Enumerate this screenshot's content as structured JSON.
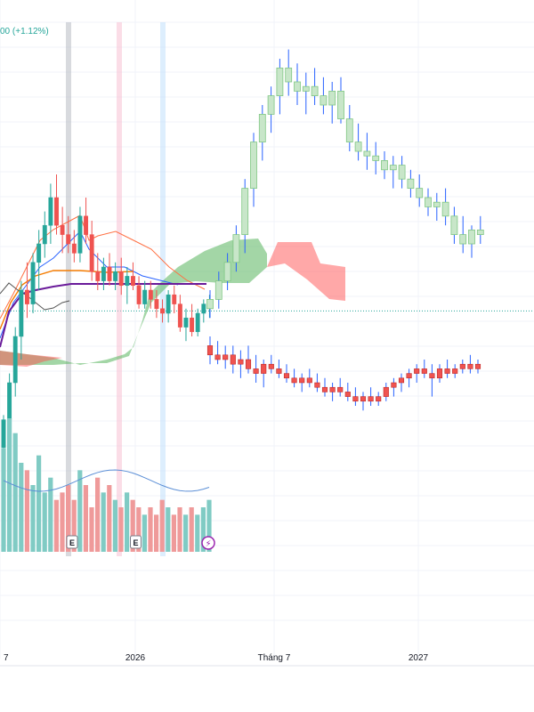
{
  "header": {
    "change_text": "00 (+1.12%)",
    "change_color": "#26a69a"
  },
  "colors": {
    "up": "#26a69a",
    "down": "#ef5350",
    "up_vol": "#80cbc4",
    "down_vol": "#ef9a9a",
    "proj_up": "#c8e6c9",
    "proj_down": "#ef5350",
    "wick": "#2962ff",
    "cloud_green": "#66bb6a",
    "cloud_red": "#ff5252",
    "tenkan": "#2962ff",
    "kijun": "#ff7043",
    "chikou": "#43a047",
    "line_orange": "#f57c00",
    "line_purple": "#6a1b9a",
    "vol_ma": "#5c8fd6",
    "highlight_grey": "#b2b5be",
    "highlight_pink": "#f8bbd0",
    "highlight_blue": "#bbdefb",
    "current_price": "#26a69a"
  },
  "chart_data": {
    "type": "candlestick",
    "title": "",
    "x_ticks": [
      {
        "label": "7",
        "week": 0
      },
      {
        "label": "2026",
        "week": 26
      },
      {
        "label": "Tháng 7",
        "week": 52
      },
      {
        "label": "2027",
        "week": 78
      }
    ],
    "y_range": [
      0,
      100
    ],
    "current_price_level": 45.5,
    "candles": [
      {
        "o": 16,
        "h": 23,
        "l": 10,
        "c": 22
      },
      {
        "o": 22,
        "h": 32,
        "l": 20,
        "c": 30
      },
      {
        "o": 30,
        "h": 42,
        "l": 27,
        "c": 40
      },
      {
        "o": 40,
        "h": 52,
        "l": 35,
        "c": 50
      },
      {
        "o": 50,
        "h": 56,
        "l": 44,
        "c": 47
      },
      {
        "o": 47,
        "h": 58,
        "l": 45,
        "c": 56
      },
      {
        "o": 56,
        "h": 63,
        "l": 50,
        "c": 60
      },
      {
        "o": 60,
        "h": 67,
        "l": 57,
        "c": 64
      },
      {
        "o": 64,
        "h": 73,
        "l": 60,
        "c": 70
      },
      {
        "o": 70,
        "h": 75,
        "l": 62,
        "c": 64
      },
      {
        "o": 64,
        "h": 68,
        "l": 58,
        "c": 62
      },
      {
        "o": 62,
        "h": 66,
        "l": 58,
        "c": 60
      },
      {
        "o": 60,
        "h": 63,
        "l": 56,
        "c": 58
      },
      {
        "o": 58,
        "h": 68,
        "l": 56,
        "c": 66
      },
      {
        "o": 66,
        "h": 70,
        "l": 60,
        "c": 62
      },
      {
        "o": 62,
        "h": 65,
        "l": 52,
        "c": 54
      },
      {
        "o": 54,
        "h": 58,
        "l": 50,
        "c": 52
      },
      {
        "o": 52,
        "h": 57,
        "l": 50,
        "c": 55
      },
      {
        "o": 55,
        "h": 58,
        "l": 51,
        "c": 52
      },
      {
        "o": 52,
        "h": 56,
        "l": 50,
        "c": 54
      },
      {
        "o": 54,
        "h": 57,
        "l": 49,
        "c": 51
      },
      {
        "o": 51,
        "h": 55,
        "l": 47,
        "c": 53
      },
      {
        "o": 53,
        "h": 56,
        "l": 50,
        "c": 51
      },
      {
        "o": 51,
        "h": 53,
        "l": 46,
        "c": 47
      },
      {
        "o": 47,
        "h": 52,
        "l": 46,
        "c": 50
      },
      {
        "o": 50,
        "h": 52,
        "l": 46,
        "c": 48
      },
      {
        "o": 48,
        "h": 50,
        "l": 44,
        "c": 46
      },
      {
        "o": 46,
        "h": 48,
        "l": 43,
        "c": 45
      },
      {
        "o": 45,
        "h": 50,
        "l": 43,
        "c": 49
      },
      {
        "o": 49,
        "h": 51,
        "l": 45,
        "c": 47
      },
      {
        "o": 47,
        "h": 49,
        "l": 41,
        "c": 42
      },
      {
        "o": 42,
        "h": 46,
        "l": 39,
        "c": 44
      },
      {
        "o": 44,
        "h": 47,
        "l": 40,
        "c": 41
      },
      {
        "o": 41,
        "h": 46,
        "l": 40,
        "c": 45
      },
      {
        "o": 45,
        "h": 48,
        "l": 43,
        "c": 47
      },
      {
        "o": 47,
        "h": 49,
        "l": 44,
        "c": 48
      }
    ],
    "projected_candles": [
      {
        "o": 46,
        "h": 48,
        "l": 42,
        "c": 44
      },
      {
        "o": 44,
        "h": 47,
        "l": 42,
        "c": 43
      },
      {
        "o": 43,
        "h": 46,
        "l": 41,
        "c": 44
      },
      {
        "o": 44,
        "h": 46,
        "l": 40,
        "c": 42
      },
      {
        "o": 42,
        "h": 45,
        "l": 39,
        "c": 43
      },
      {
        "o": 43,
        "h": 46,
        "l": 40,
        "c": 41
      },
      {
        "o": 41,
        "h": 44,
        "l": 38,
        "c": 40
      },
      {
        "o": 40,
        "h": 43,
        "l": 37,
        "c": 42
      },
      {
        "o": 42,
        "h": 44,
        "l": 40,
        "c": 41
      },
      {
        "o": 41,
        "h": 43,
        "l": 39,
        "c": 40
      },
      {
        "o": 40,
        "h": 42,
        "l": 38,
        "c": 39
      },
      {
        "o": 39,
        "h": 41,
        "l": 37,
        "c": 38
      },
      {
        "o": 38,
        "h": 40,
        "l": 36,
        "c": 39
      },
      {
        "o": 39,
        "h": 41,
        "l": 37,
        "c": 38
      },
      {
        "o": 38,
        "h": 40,
        "l": 36,
        "c": 37
      },
      {
        "o": 37,
        "h": 39,
        "l": 35,
        "c": 36
      },
      {
        "o": 36,
        "h": 38,
        "l": 34,
        "c": 37
      },
      {
        "o": 37,
        "h": 39,
        "l": 35,
        "c": 36
      },
      {
        "o": 36,
        "h": 38,
        "l": 34,
        "c": 35
      },
      {
        "o": 35,
        "h": 37,
        "l": 33,
        "c": 34
      },
      {
        "o": 34,
        "h": 36,
        "l": 32,
        "c": 35
      },
      {
        "o": 35,
        "h": 37,
        "l": 33,
        "c": 34
      },
      {
        "o": 34,
        "h": 36,
        "l": 33,
        "c": 35
      },
      {
        "o": 35,
        "h": 38,
        "l": 34,
        "c": 37
      },
      {
        "o": 37,
        "h": 39,
        "l": 35,
        "c": 38
      },
      {
        "o": 38,
        "h": 40,
        "l": 36,
        "c": 39
      },
      {
        "o": 39,
        "h": 41,
        "l": 37,
        "c": 40
      },
      {
        "o": 40,
        "h": 42,
        "l": 38,
        "c": 41
      },
      {
        "o": 41,
        "h": 43,
        "l": 39,
        "c": 40
      },
      {
        "o": 40,
        "h": 42,
        "l": 35,
        "c": 39
      },
      {
        "o": 39,
        "h": 42,
        "l": 38,
        "c": 41
      },
      {
        "o": 41,
        "h": 43,
        "l": 39,
        "c": 40
      },
      {
        "o": 40,
        "h": 42,
        "l": 39,
        "c": 41
      },
      {
        "o": 41,
        "h": 43,
        "l": 40,
        "c": 42
      },
      {
        "o": 42,
        "h": 44,
        "l": 40,
        "c": 41
      },
      {
        "o": 41,
        "h": 43,
        "l": 40,
        "c": 42
      }
    ],
    "upper_projection": [
      {
        "o": 46,
        "h": 50,
        "l": 44,
        "c": 48
      },
      {
        "o": 48,
        "h": 54,
        "l": 46,
        "c": 52
      },
      {
        "o": 52,
        "h": 58,
        "l": 50,
        "c": 56
      },
      {
        "o": 56,
        "h": 64,
        "l": 54,
        "c": 62
      },
      {
        "o": 62,
        "h": 74,
        "l": 58,
        "c": 72
      },
      {
        "o": 72,
        "h": 84,
        "l": 68,
        "c": 82
      },
      {
        "o": 82,
        "h": 90,
        "l": 78,
        "c": 88
      },
      {
        "o": 88,
        "h": 94,
        "l": 84,
        "c": 92
      },
      {
        "o": 92,
        "h": 100,
        "l": 88,
        "c": 98
      },
      {
        "o": 98,
        "h": 102,
        "l": 92,
        "c": 95
      },
      {
        "o": 95,
        "h": 99,
        "l": 90,
        "c": 93
      },
      {
        "o": 93,
        "h": 97,
        "l": 88,
        "c": 94
      },
      {
        "o": 94,
        "h": 98,
        "l": 90,
        "c": 92
      },
      {
        "o": 92,
        "h": 96,
        "l": 88,
        "c": 90
      },
      {
        "o": 90,
        "h": 95,
        "l": 86,
        "c": 93
      },
      {
        "o": 93,
        "h": 96,
        "l": 86,
        "c": 87
      },
      {
        "o": 87,
        "h": 90,
        "l": 80,
        "c": 82
      },
      {
        "o": 82,
        "h": 86,
        "l": 78,
        "c": 80
      },
      {
        "o": 80,
        "h": 84,
        "l": 76,
        "c": 79
      },
      {
        "o": 79,
        "h": 82,
        "l": 75,
        "c": 78
      },
      {
        "o": 78,
        "h": 80,
        "l": 74,
        "c": 76
      },
      {
        "o": 76,
        "h": 79,
        "l": 72,
        "c": 77
      },
      {
        "o": 77,
        "h": 79,
        "l": 72,
        "c": 74
      },
      {
        "o": 74,
        "h": 76,
        "l": 70,
        "c": 72
      },
      {
        "o": 72,
        "h": 75,
        "l": 68,
        "c": 70
      },
      {
        "o": 70,
        "h": 72,
        "l": 66,
        "c": 68
      },
      {
        "o": 68,
        "h": 71,
        "l": 65,
        "c": 69
      },
      {
        "o": 69,
        "h": 72,
        "l": 64,
        "c": 66
      },
      {
        "o": 66,
        "h": 68,
        "l": 60,
        "c": 62
      },
      {
        "o": 62,
        "h": 66,
        "l": 58,
        "c": 60
      },
      {
        "o": 60,
        "h": 64,
        "l": 57,
        "c": 63
      },
      {
        "o": 63,
        "h": 66,
        "l": 60,
        "c": 62
      }
    ],
    "volume": [
      14,
      18,
      16,
      12,
      11,
      9,
      13,
      8,
      10,
      7,
      8,
      9,
      7,
      11,
      9,
      6,
      10,
      8,
      9,
      7,
      6,
      8,
      7,
      6,
      5,
      6,
      5,
      7,
      6,
      5,
      6,
      5,
      6,
      5,
      6,
      7
    ],
    "events": [
      {
        "label": "E",
        "index": 14
      },
      {
        "label": "E",
        "index": 27
      }
    ]
  }
}
